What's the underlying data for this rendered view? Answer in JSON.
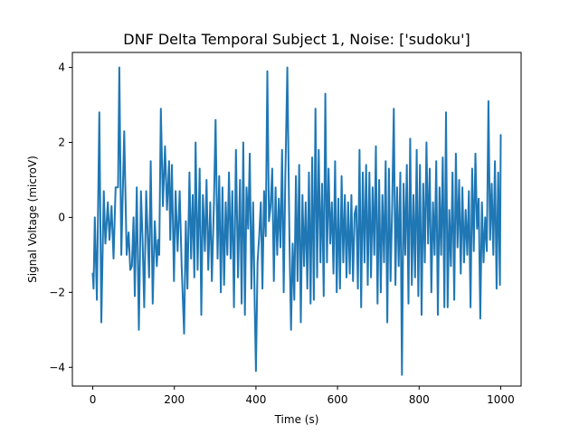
{
  "chart_data": {
    "type": "line",
    "title": "DNF Delta Temporal Subject 1, Noise: ['sudoku']",
    "xlabel": "Time (s)",
    "ylabel": "Signal Voltage (microV)",
    "xlim": [
      -50,
      1050
    ],
    "ylim": [
      -4.5,
      4.4
    ],
    "xticks": [
      0,
      200,
      400,
      600,
      800,
      1000
    ],
    "yticks": [
      -4,
      -2,
      0,
      2,
      4
    ],
    "xtick_labels": [
      "0",
      "200",
      "400",
      "600",
      "800",
      "1000"
    ],
    "ytick_labels": [
      "−4",
      "−2",
      "0",
      "2",
      "4"
    ],
    "grid": false,
    "series": [
      {
        "color": "#1f77b4",
        "points": [
          [
            0,
            -1.5
          ],
          [
            2,
            -1.9
          ],
          [
            5,
            0.0
          ],
          [
            10,
            -2.2
          ],
          [
            16,
            2.8
          ],
          [
            21,
            -2.8
          ],
          [
            27,
            0.7
          ],
          [
            31,
            -0.7
          ],
          [
            37,
            0.4
          ],
          [
            41,
            -0.6
          ],
          [
            46,
            0.3
          ],
          [
            51,
            -1.1
          ],
          [
            56,
            0.8
          ],
          [
            62,
            0.8
          ],
          [
            65,
            4.0
          ],
          [
            70,
            -1.0
          ],
          [
            77,
            2.3
          ],
          [
            83,
            -1.0
          ],
          [
            88,
            -0.4
          ],
          [
            92,
            -1.4
          ],
          [
            96,
            -1.3
          ],
          [
            100,
            0.0
          ],
          [
            103,
            -2.1
          ],
          [
            108,
            0.8
          ],
          [
            113,
            -3.0
          ],
          [
            118,
            0.7
          ],
          [
            122,
            -0.6
          ],
          [
            126,
            -2.4
          ],
          [
            131,
            0.7
          ],
          [
            138,
            -1.6
          ],
          [
            142,
            1.5
          ],
          [
            147,
            -2.3
          ],
          [
            152,
            -0.1
          ],
          [
            157,
            -1.3
          ],
          [
            160,
            -0.6
          ],
          [
            163,
            -1.0
          ],
          [
            167,
            2.9
          ],
          [
            172,
            0.3
          ],
          [
            177,
            1.9
          ],
          [
            182,
            0.2
          ],
          [
            187,
            1.5
          ],
          [
            190,
            -0.6
          ],
          [
            194,
            1.4
          ],
          [
            199,
            -1.7
          ],
          [
            203,
            0.7
          ],
          [
            208,
            -0.9
          ],
          [
            213,
            0.7
          ],
          [
            218,
            -1.3
          ],
          [
            224,
            -3.1
          ],
          [
            228,
            -0.1
          ],
          [
            232,
            -1.9
          ],
          [
            237,
            1.2
          ],
          [
            241,
            -1.1
          ],
          [
            245,
            0.6
          ],
          [
            249,
            -1.6
          ],
          [
            252,
            2.0
          ],
          [
            257,
            -1.4
          ],
          [
            262,
            1.3
          ],
          [
            266,
            -2.6
          ],
          [
            270,
            0.6
          ],
          [
            275,
            -0.9
          ],
          [
            279,
            1.0
          ],
          [
            283,
            -1.4
          ],
          [
            288,
            0.4
          ],
          [
            292,
            -1.7
          ],
          [
            297,
            0.4
          ],
          [
            301,
            2.6
          ],
          [
            306,
            -1.1
          ],
          [
            310,
            1.1
          ],
          [
            314,
            -2.0
          ],
          [
            318,
            0.8
          ],
          [
            322,
            -1.8
          ],
          [
            326,
            0.4
          ],
          [
            330,
            -1.0
          ],
          [
            334,
            1.2
          ],
          [
            338,
            -1.1
          ],
          [
            342,
            0.7
          ],
          [
            346,
            -2.4
          ],
          [
            351,
            1.8
          ],
          [
            356,
            -1.6
          ],
          [
            361,
            1.0
          ],
          [
            365,
            -2.3
          ],
          [
            369,
            2.0
          ],
          [
            373,
            -2.6
          ],
          [
            377,
            0.8
          ],
          [
            381,
            -0.3
          ],
          [
            385,
            1.7
          ],
          [
            389,
            -1.9
          ],
          [
            393,
            0.4
          ],
          [
            397,
            -2.4
          ],
          [
            400,
            -4.1
          ],
          [
            404,
            -1.2
          ],
          [
            408,
            -0.5
          ],
          [
            412,
            0.4
          ],
          [
            416,
            -1.9
          ],
          [
            420,
            0.7
          ],
          [
            424,
            -0.5
          ],
          [
            428,
            3.9
          ],
          [
            432,
            -0.1
          ],
          [
            436,
            0.3
          ],
          [
            440,
            1.3
          ],
          [
            444,
            -1.7
          ],
          [
            448,
            0.8
          ],
          [
            452,
            -1.0
          ],
          [
            456,
            0.5
          ],
          [
            460,
            -0.8
          ],
          [
            464,
            1.8
          ],
          [
            468,
            -2.0
          ],
          [
            472,
            1.1
          ],
          [
            477,
            4.0
          ],
          [
            482,
            -0.5
          ],
          [
            486,
            -3.0
          ],
          [
            490,
            -0.7
          ],
          [
            494,
            -2.2
          ],
          [
            498,
            1.1
          ],
          [
            502,
            -1.7
          ],
          [
            506,
            1.4
          ],
          [
            510,
            -2.8
          ],
          [
            514,
            0.6
          ],
          [
            518,
            -1.3
          ],
          [
            522,
            0.4
          ],
          [
            526,
            -1.9
          ],
          [
            530,
            1.2
          ],
          [
            534,
            -2.3
          ],
          [
            538,
            1.6
          ],
          [
            542,
            -2.2
          ],
          [
            546,
            2.9
          ],
          [
            550,
            -1.6
          ],
          [
            554,
            1.8
          ],
          [
            558,
            -1.2
          ],
          [
            562,
            0.9
          ],
          [
            566,
            -2.1
          ],
          [
            570,
            3.3
          ],
          [
            574,
            -1.2
          ],
          [
            578,
            1.3
          ],
          [
            582,
            -0.7
          ],
          [
            586,
            0.4
          ],
          [
            590,
            -1.5
          ],
          [
            594,
            1.5
          ],
          [
            598,
            -2.0
          ],
          [
            602,
            0.5
          ],
          [
            606,
            -1.9
          ],
          [
            610,
            1.1
          ],
          [
            614,
            -1.2
          ],
          [
            618,
            0.6
          ],
          [
            622,
            -1.6
          ],
          [
            626,
            0.4
          ],
          [
            630,
            -1.5
          ],
          [
            634,
            0.6
          ],
          [
            638,
            -1.7
          ],
          [
            642,
            0.1
          ],
          [
            646,
            0.3
          ],
          [
            650,
            -1.9
          ],
          [
            654,
            1.8
          ],
          [
            658,
            -2.4
          ],
          [
            662,
            1.2
          ],
          [
            666,
            -1.2
          ],
          [
            670,
            1.4
          ],
          [
            674,
            -1.8
          ],
          [
            678,
            1.2
          ],
          [
            682,
            -1.6
          ],
          [
            686,
            0.8
          ],
          [
            690,
            -1.0
          ],
          [
            694,
            1.9
          ],
          [
            698,
            -2.3
          ],
          [
            702,
            1.0
          ],
          [
            706,
            -2.0
          ],
          [
            710,
            0.6
          ],
          [
            714,
            -1.2
          ],
          [
            718,
            1.5
          ],
          [
            722,
            -2.8
          ],
          [
            726,
            1.3
          ],
          [
            730,
            -1.7
          ],
          [
            734,
            0.3
          ],
          [
            738,
            2.9
          ],
          [
            742,
            -1.8
          ],
          [
            746,
            0.8
          ],
          [
            750,
            -1.3
          ],
          [
            754,
            1.2
          ],
          [
            758,
            -4.2
          ],
          [
            762,
            0.9
          ],
          [
            766,
            -1.0
          ],
          [
            770,
            1.4
          ],
          [
            774,
            -2.3
          ],
          [
            778,
            2.1
          ],
          [
            782,
            -1.8
          ],
          [
            786,
            0.6
          ],
          [
            790,
            -1.6
          ],
          [
            794,
            1.8
          ],
          [
            798,
            -2.1
          ],
          [
            802,
            1.4
          ],
          [
            806,
            -2.6
          ],
          [
            810,
            0.9
          ],
          [
            814,
            -1.2
          ],
          [
            818,
            2.0
          ],
          [
            822,
            -0.7
          ],
          [
            826,
            1.3
          ],
          [
            830,
            -2.0
          ],
          [
            834,
            0.4
          ],
          [
            838,
            -1.0
          ],
          [
            842,
            1.5
          ],
          [
            846,
            -2.6
          ],
          [
            850,
            0.8
          ],
          [
            854,
            -1.0
          ],
          [
            858,
            1.6
          ],
          [
            862,
            -2.4
          ],
          [
            866,
            2.8
          ],
          [
            870,
            -2.4
          ],
          [
            874,
            0.2
          ],
          [
            878,
            -1.3
          ],
          [
            882,
            1.2
          ],
          [
            886,
            -2.2
          ],
          [
            890,
            1.7
          ],
          [
            894,
            -0.8
          ],
          [
            898,
            1.0
          ],
          [
            902,
            -1.5
          ],
          [
            906,
            0.8
          ],
          [
            910,
            -1.2
          ],
          [
            914,
            0.2
          ],
          [
            918,
            -1.0
          ],
          [
            922,
            0.7
          ],
          [
            926,
            -2.4
          ],
          [
            930,
            1.3
          ],
          [
            934,
            -0.9
          ],
          [
            938,
            1.7
          ],
          [
            942,
            -0.3
          ],
          [
            946,
            0.5
          ],
          [
            950,
            -2.7
          ],
          [
            954,
            0.4
          ],
          [
            958,
            -1.2
          ],
          [
            962,
            0.0
          ],
          [
            966,
            -0.9
          ],
          [
            970,
            3.1
          ],
          [
            974,
            -0.6
          ],
          [
            978,
            0.9
          ],
          [
            982,
            -1.0
          ],
          [
            986,
            1.5
          ],
          [
            990,
            -1.9
          ],
          [
            994,
            1.2
          ],
          [
            998,
            -1.8
          ],
          [
            1000,
            2.2
          ]
        ]
      }
    ]
  }
}
